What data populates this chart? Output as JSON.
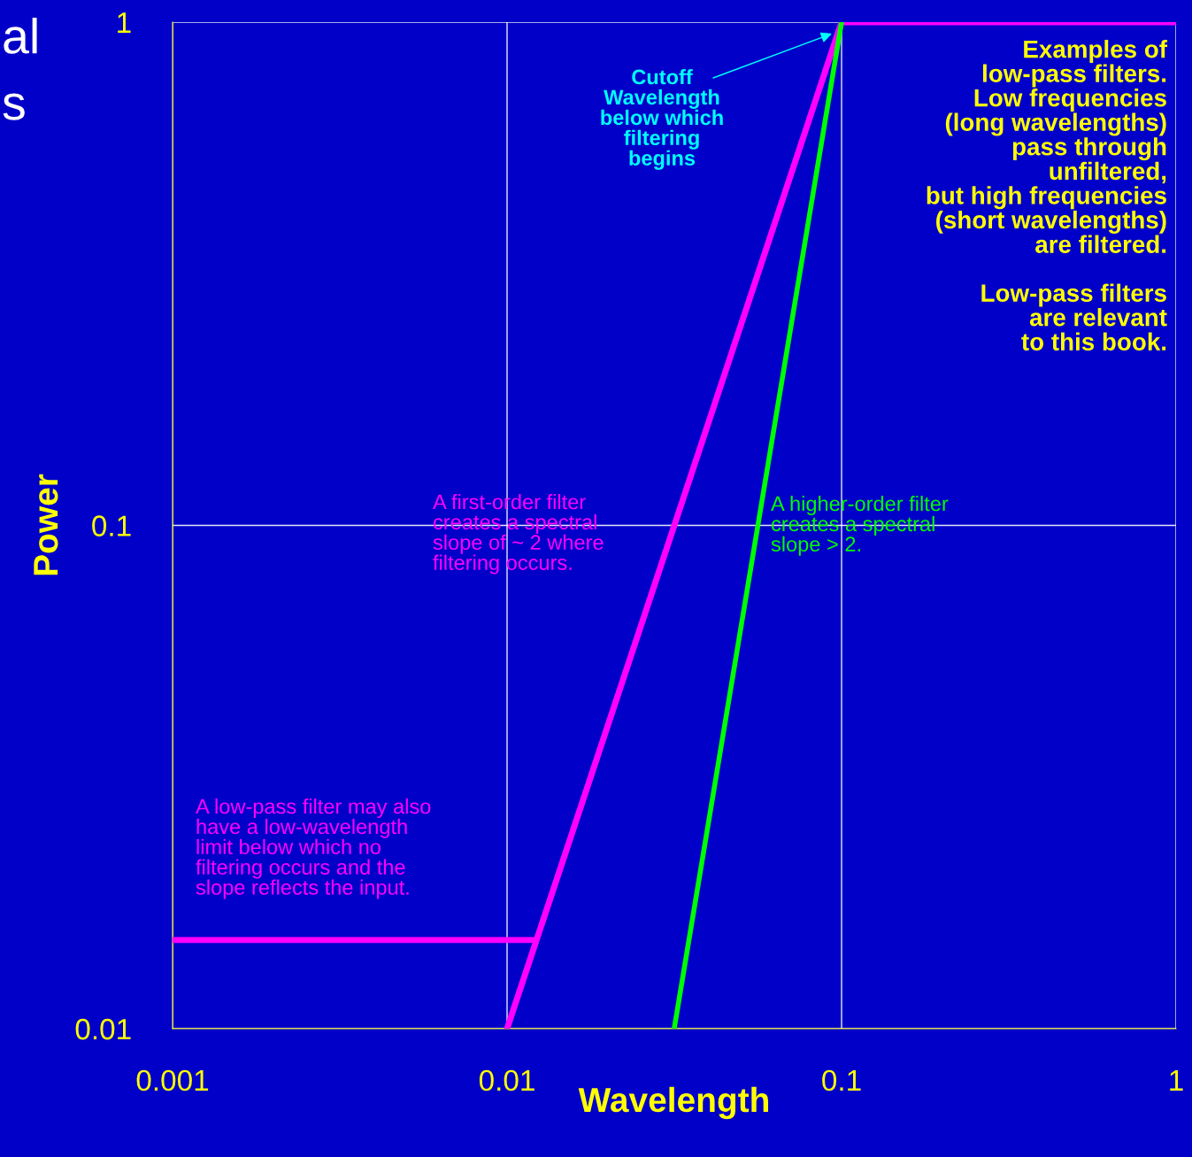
{
  "chart_data": {
    "type": "line",
    "xlabel": "Wavelength",
    "ylabel": "Power",
    "log": "xy",
    "xlim": [
      0.001,
      1
    ],
    "ylim": [
      0.01,
      1
    ],
    "xticks": [
      0.001,
      0.01,
      0.1,
      1
    ],
    "yticks": [
      0.01,
      0.1,
      1
    ],
    "grid": true,
    "marker": "none",
    "line_style": "solid",
    "series": [
      {
        "color": "#ff00ff",
        "x": [
          0.01,
          0.1,
          1
        ],
        "values": [
          0.01,
          1,
          1
        ]
      },
      {
        "color": "#ff00ff",
        "x": [
          0.001,
          0.0122
        ],
        "values": [
          0.015,
          0.015
        ]
      },
      {
        "color": "#00ff00",
        "x": [
          0.0316,
          0.1
        ],
        "values": [
          0.01,
          1
        ]
      }
    ],
    "annotations": [
      "Cutoff\nWavelength\nbelow which\nfiltering\nbegins",
      "Examples of\nlow-pass filters.\nLow frequencies\n(long wavelengths)\npass through\nunfiltered,\nbut high frequencies\n(short wavelengths)\nare filtered.\n\nLow-pass filters\nare relevant\nto this book.",
      "A first-order filter\ncreates a spectral\nslope of ~ 2 where\nfiltering occurs.",
      "A higher-order filter\ncreates a spectral\nslope > 2.",
      "A low-pass filter may also\nhave a low-wavelength\nlimit below which no\nfiltering occurs and the\nslope reflects the input.",
      "al",
      "s"
    ]
  }
}
